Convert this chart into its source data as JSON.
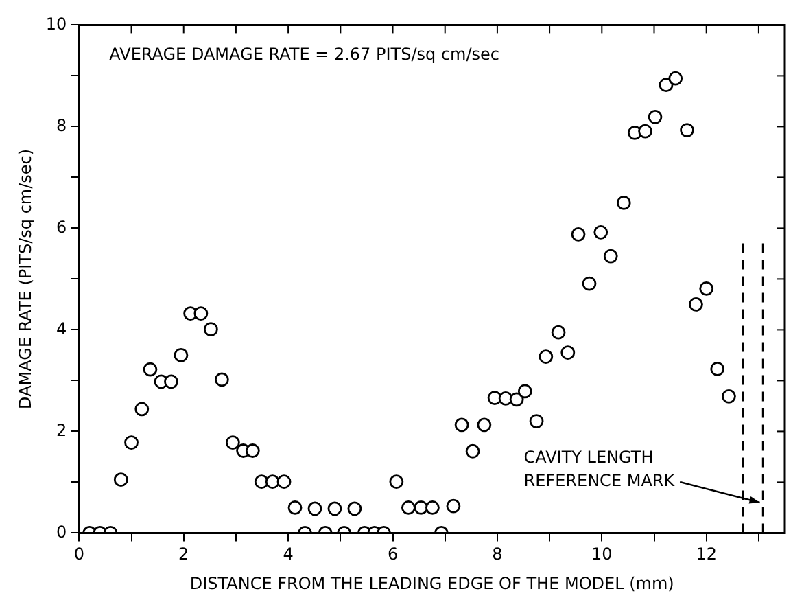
{
  "chart_data": {
    "type": "scatter",
    "xlabel": "DISTANCE FROM THE LEADING EDGE OF THE MODEL (mm)",
    "ylabel": "DAMAGE RATE (PITS/sq cm/sec)",
    "annotations": [
      "AVERAGE DAMAGE RATE = 2.67 PITS/sq cm/sec",
      {
        "text": "CAVITY LENGTH REFERENCE MARK",
        "x": 13.1,
        "y": 0.6
      }
    ],
    "series": [
      {
        "color": "#000000",
        "x": [
          0.2,
          0.4,
          0.6,
          0.8,
          1.0,
          1.2,
          1.36,
          1.57,
          1.76,
          1.95,
          2.13,
          2.33,
          2.52,
          2.73,
          2.94,
          3.14,
          3.32,
          3.49,
          3.7,
          3.92,
          4.13,
          4.32,
          4.51,
          4.71,
          4.89,
          5.07,
          5.27,
          5.46,
          5.65,
          5.83,
          6.07,
          6.3,
          6.54,
          6.76,
          6.93,
          7.16,
          7.32,
          7.53,
          7.75,
          7.95,
          8.16,
          8.37,
          8.53,
          8.75,
          8.93,
          9.17,
          9.35,
          9.55,
          9.76,
          9.98,
          10.17,
          10.42,
          10.63,
          10.83,
          11.02,
          11.23,
          11.41,
          11.63,
          11.8,
          12.0,
          12.21,
          12.43
        ],
        "values": [
          0,
          0,
          0,
          1.05,
          1.78,
          2.44,
          3.22,
          2.98,
          2.98,
          3.5,
          4.32,
          4.32,
          4.01,
          3.02,
          1.78,
          1.62,
          1.62,
          1.01,
          1.01,
          1.01,
          0.5,
          0,
          0.48,
          0,
          0.48,
          0,
          0.48,
          0,
          0,
          0,
          1.01,
          0.5,
          0.5,
          0.5,
          0,
          0.53,
          2.13,
          1.61,
          2.13,
          2.66,
          2.65,
          2.63,
          2.79,
          2.2,
          3.47,
          3.95,
          3.55,
          5.88,
          4.91,
          5.92,
          5.45,
          6.5,
          7.88,
          7.91,
          8.19,
          8.82,
          8.95,
          7.93,
          4.5,
          4.81,
          3.23,
          2.69
        ]
      }
    ],
    "marker": "circle",
    "xlim": [
      0,
      13.5
    ],
    "ylim": [
      0,
      10
    ],
    "xticks": [
      0,
      {
        "value": 1,
        "label": null
      },
      2,
      {
        "value": 3,
        "label": null
      },
      4,
      {
        "value": 5,
        "label": null
      },
      6,
      {
        "value": 7,
        "label": null
      },
      8,
      {
        "value": 9,
        "label": null
      },
      10,
      {
        "value": 11,
        "label": null
      },
      12,
      {
        "value": 13,
        "label": null
      }
    ],
    "yticks": [
      0,
      {
        "value": 1,
        "label": null
      },
      2,
      {
        "value": 3,
        "label": null
      },
      4,
      {
        "value": 5,
        "label": null
      },
      6,
      {
        "value": 7,
        "label": null
      },
      8,
      {
        "value": 9,
        "label": null
      },
      10
    ],
    "ref_lines": [
      {
        "axis": "x",
        "value": 12.7,
        "line_style": "dashed"
      },
      {
        "axis": "x",
        "value": 13.08,
        "line_style": "dashed"
      }
    ],
    "grid": false,
    "legend": false
  }
}
